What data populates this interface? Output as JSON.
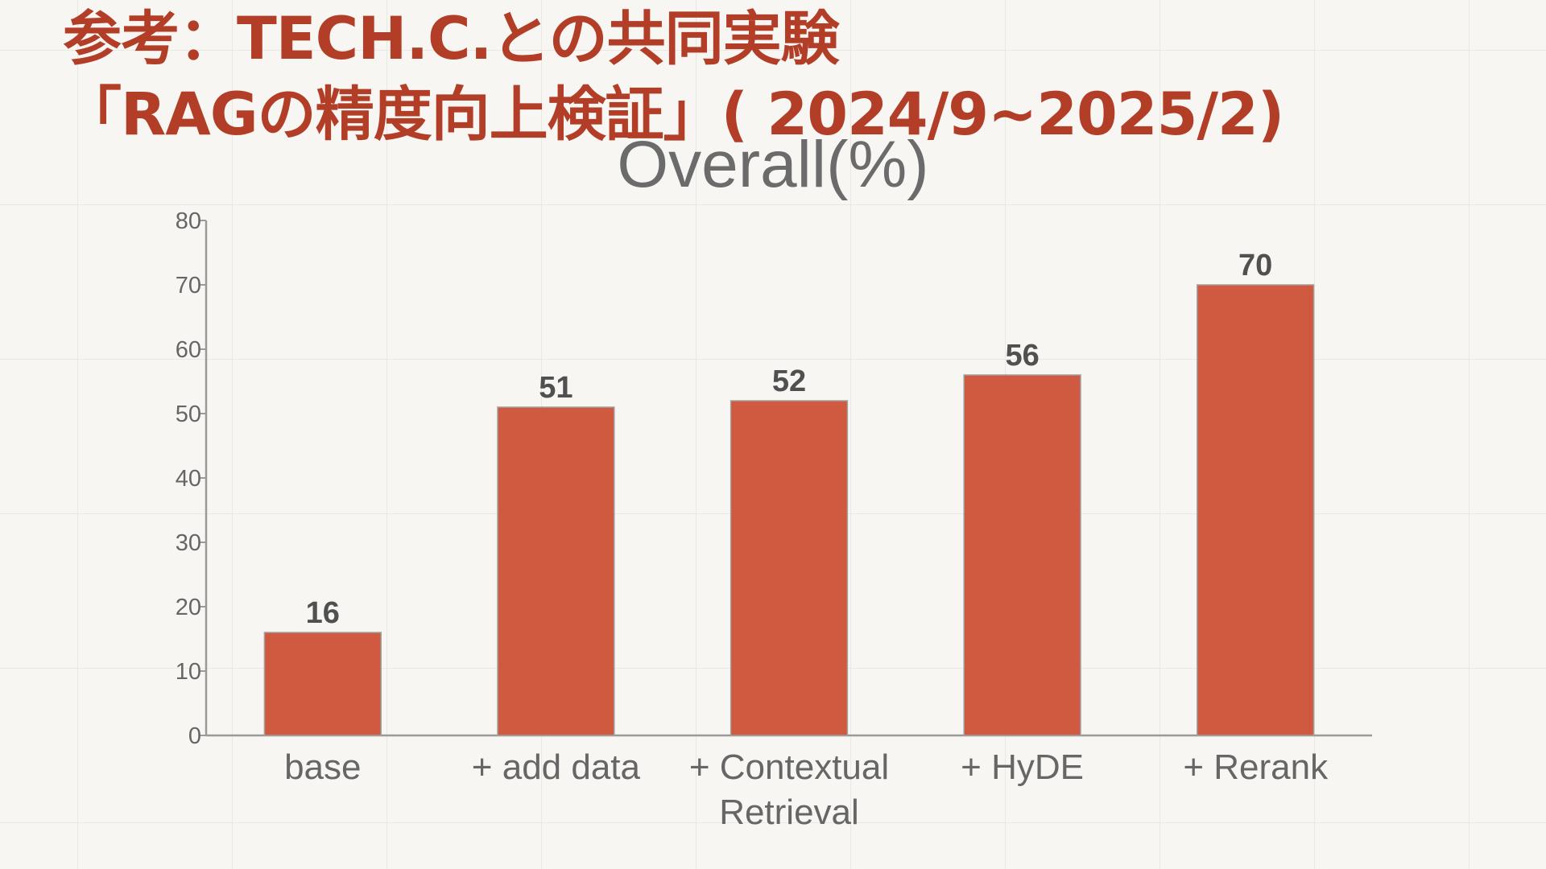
{
  "slide": {
    "title_line1": "参考：TECH.C.との共同実験",
    "title_line2": "「RAGの精度向上検証」( 2024/9~2025/2)"
  },
  "colors": {
    "title": "#b33e28",
    "bar": "#d05a3f",
    "background": "#f7f6f3",
    "axis": "#9a9a9a"
  },
  "chart_data": {
    "type": "bar",
    "title": "Overall(%)",
    "xlabel": "",
    "ylabel": "",
    "categories": [
      [
        "base"
      ],
      [
        "+ add data"
      ],
      [
        "+ Contextual",
        "Retrieval"
      ],
      [
        "+ HyDE"
      ],
      [
        "+ Rerank"
      ]
    ],
    "values": [
      16,
      51,
      52,
      56,
      70
    ],
    "ylim": [
      0,
      80
    ],
    "yticks": [
      0,
      10,
      20,
      30,
      40,
      50,
      60,
      70,
      80
    ],
    "grid": false,
    "legend": "none",
    "data_labels": true
  }
}
